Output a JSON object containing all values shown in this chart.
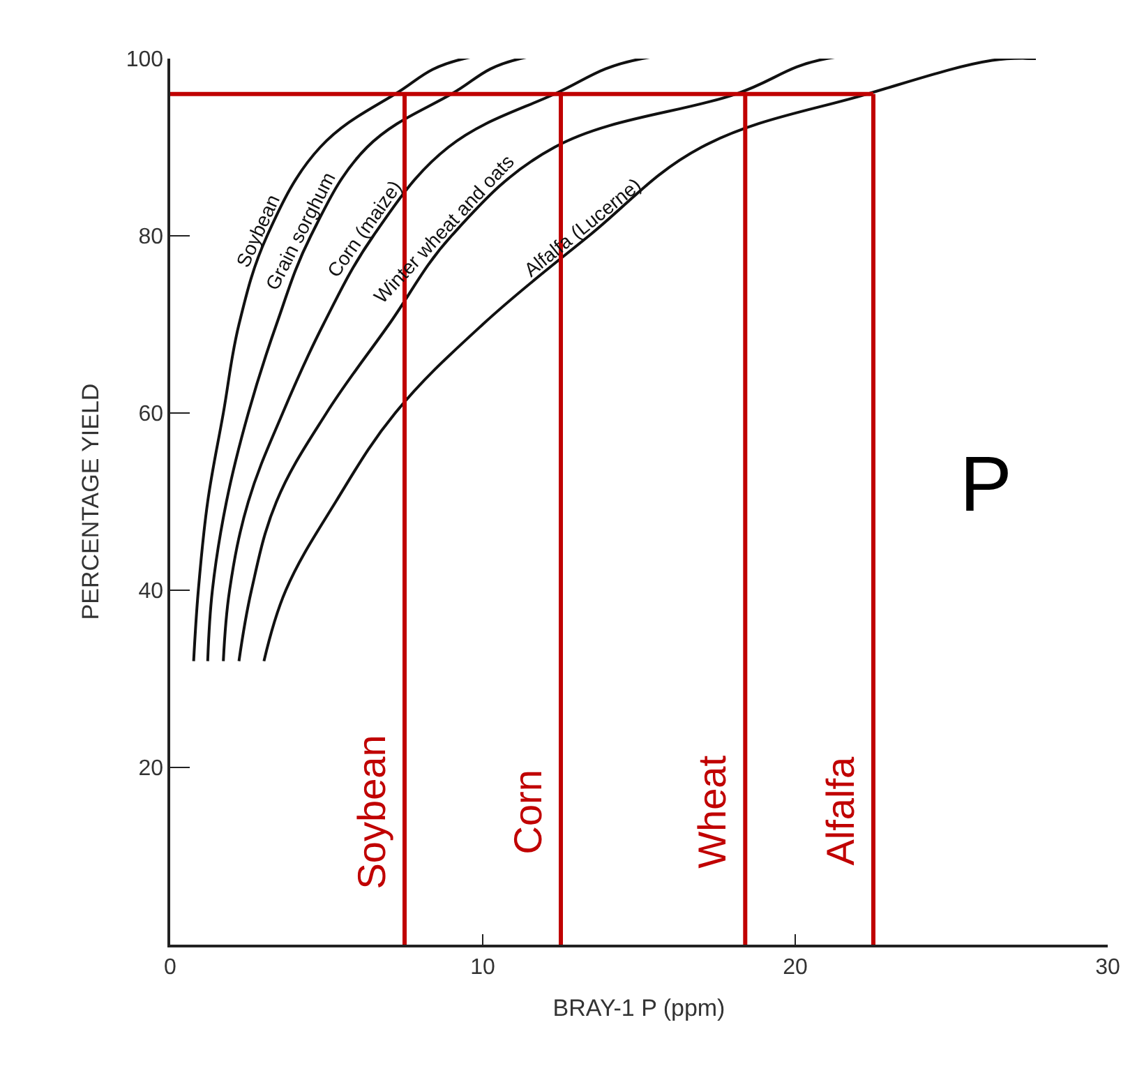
{
  "chart_data": {
    "type": "line",
    "xlabel": "BRAY-1 P (ppm)",
    "ylabel": "PERCENTAGE YIELD",
    "xlim": [
      0,
      30
    ],
    "ylim": [
      0,
      100
    ],
    "xticks": [
      0,
      10,
      20,
      30
    ],
    "yticks": [
      20,
      40,
      60,
      80,
      100
    ],
    "marker": "none",
    "line_style": "solid",
    "series": [
      {
        "color": "#111111",
        "x": [
          0.75,
          0.9,
          1.2,
          1.7,
          2.2,
          3.1,
          4.8,
          7.2,
          9.4,
          27.7
        ],
        "values": [
          32,
          40,
          50,
          60,
          70,
          80,
          90,
          96,
          100,
          100
        ]
      },
      {
        "color": "#111111",
        "x": [
          1.2,
          1.35,
          1.8,
          2.5,
          3.4,
          4.5,
          6.3,
          9.0,
          11.2,
          27.7
        ],
        "values": [
          32,
          40,
          50,
          60,
          70,
          80,
          90,
          96,
          100,
          100
        ]
      },
      {
        "color": "#111111",
        "x": [
          1.7,
          1.9,
          2.5,
          3.6,
          4.9,
          6.5,
          8.9,
          12.3,
          15.1,
          27.7
        ],
        "values": [
          32,
          40,
          50,
          60,
          70,
          80,
          90,
          96,
          100,
          100
        ]
      },
      {
        "color": "#111111",
        "x": [
          2.2,
          2.6,
          3.4,
          5.0,
          7.0,
          9.0,
          12.3,
          18.1,
          21.0,
          27.7
        ],
        "values": [
          32,
          40,
          50,
          60,
          70,
          80,
          90,
          96,
          100,
          100
        ]
      },
      {
        "color": "#111111",
        "x": [
          3.0,
          3.7,
          5.3,
          7.2,
          10.0,
          13.4,
          17.0,
          22.3,
          26.3,
          27.7
        ],
        "values": [
          32,
          40,
          50,
          60,
          70,
          80,
          90,
          96,
          99.8,
          100
        ]
      }
    ],
    "annotations": [
      "Soybean",
      "Grain sorghum",
      "Corn (maize)",
      "Winter wheat and oats",
      "Alfalfa (Lucerne)",
      "P"
    ],
    "ref_lines": [
      {
        "axis": "y",
        "value": 96,
        "color": "#c00000"
      },
      {
        "axis": "x",
        "value": 7.5,
        "label": "Soybean",
        "color": "#c00000"
      },
      {
        "axis": "x",
        "value": 12.5,
        "label": "Corn",
        "color": "#c00000"
      },
      {
        "axis": "x",
        "value": 18.4,
        "label": "Wheat",
        "color": "#c00000"
      },
      {
        "axis": "x",
        "value": 22.5,
        "label": "Alfalfa",
        "color": "#c00000"
      }
    ]
  }
}
